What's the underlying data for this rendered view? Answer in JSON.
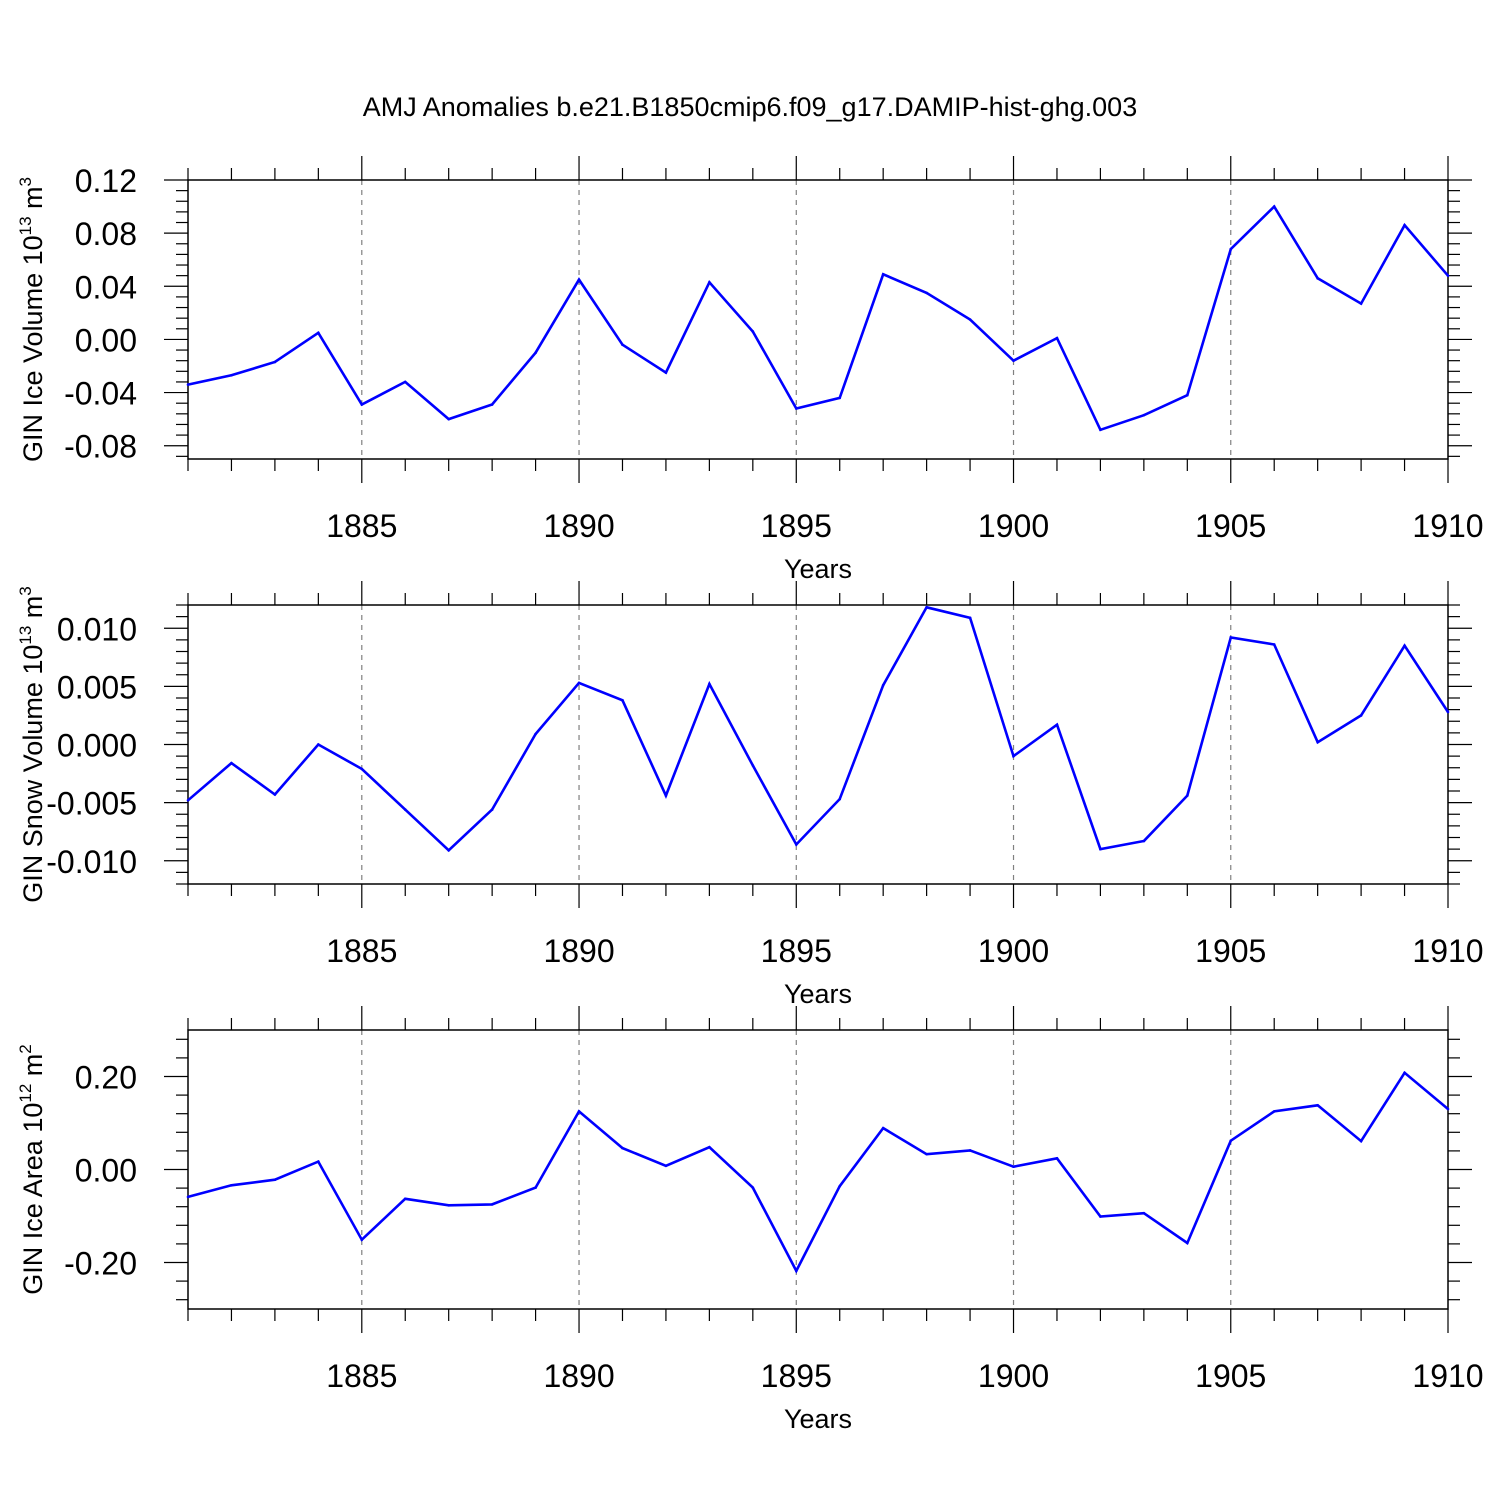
{
  "title": "AMJ Anomalies b.e21.B1850cmip6.f09_g17.DAMIP-hist-ghg.003",
  "colors": {
    "line": "#0000ff",
    "frame": "#000000",
    "grid": "#808080"
  },
  "chart_data": [
    {
      "type": "line",
      "ylabel": "GIN Ice Volume 10",
      "ylabel_exp": "13",
      "ylabel_unit": " m",
      "ylabel_unit_exp": "3",
      "xlabel": "Years",
      "xlim": [
        1881,
        1910
      ],
      "ylim": [
        -0.09,
        0.12
      ],
      "yticks": [
        -0.08,
        -0.04,
        0.0,
        0.04,
        0.08,
        0.12
      ],
      "ytick_labels": [
        "-0.08",
        "-0.04",
        "0.00",
        "0.04",
        "0.08",
        "0.12"
      ],
      "xticks": [
        1885,
        1890,
        1895,
        1900,
        1905,
        1910
      ],
      "xtick_labels": [
        "1885",
        "1890",
        "1895",
        "1900",
        "1905",
        "1910"
      ],
      "grid": "vertical dashed at major x ticks",
      "x": [
        1881,
        1882,
        1883,
        1884,
        1885,
        1886,
        1887,
        1888,
        1889,
        1890,
        1891,
        1892,
        1893,
        1894,
        1895,
        1896,
        1897,
        1898,
        1899,
        1900,
        1901,
        1902,
        1903,
        1904,
        1905,
        1906,
        1907,
        1908,
        1909,
        1910
      ],
      "values": [
        -0.034,
        -0.027,
        -0.017,
        0.005,
        -0.049,
        -0.032,
        -0.06,
        -0.049,
        -0.01,
        0.045,
        -0.004,
        -0.025,
        0.043,
        0.006,
        -0.052,
        -0.044,
        0.049,
        0.035,
        0.015,
        -0.016,
        0.001,
        -0.068,
        -0.057,
        -0.042,
        0.068,
        0.1,
        0.046,
        0.027,
        0.086,
        0.048
      ]
    },
    {
      "type": "line",
      "ylabel": "GIN Snow Volume 10",
      "ylabel_exp": "13",
      "ylabel_unit": " m",
      "ylabel_unit_exp": "3",
      "xlabel": "Years",
      "xlim": [
        1881,
        1910
      ],
      "ylim": [
        -0.012,
        0.012
      ],
      "yticks": [
        -0.01,
        -0.005,
        0.0,
        0.005,
        0.01
      ],
      "ytick_labels": [
        "-0.010",
        "-0.005",
        "0.000",
        "0.005",
        "0.010"
      ],
      "xticks": [
        1885,
        1890,
        1895,
        1900,
        1905,
        1910
      ],
      "xtick_labels": [
        "1885",
        "1890",
        "1895",
        "1900",
        "1905",
        "1910"
      ],
      "grid": "vertical dashed at major x ticks",
      "x": [
        1881,
        1882,
        1883,
        1884,
        1885,
        1886,
        1887,
        1888,
        1889,
        1890,
        1891,
        1892,
        1893,
        1894,
        1895,
        1896,
        1897,
        1898,
        1899,
        1900,
        1901,
        1902,
        1903,
        1904,
        1905,
        1906,
        1907,
        1908,
        1909,
        1910
      ],
      "values": [
        -0.0048,
        -0.0016,
        -0.0043,
        0.0,
        -0.0021,
        -0.0056,
        -0.0091,
        -0.0056,
        0.0009,
        0.0053,
        0.0038,
        -0.0044,
        0.0052,
        -0.0018,
        -0.0086,
        -0.0047,
        0.0051,
        0.0118,
        0.0109,
        -0.001,
        0.0017,
        -0.009,
        -0.0083,
        -0.0044,
        0.0092,
        0.0086,
        0.0002,
        0.0025,
        0.0085,
        0.0028
      ]
    },
    {
      "type": "line",
      "ylabel": "GIN Ice Area 10",
      "ylabel_exp": "12",
      "ylabel_unit": " m",
      "ylabel_unit_exp": "2",
      "xlabel": "Years",
      "xlim": [
        1881,
        1910
      ],
      "ylim": [
        -0.3,
        0.3
      ],
      "yticks": [
        -0.2,
        0.0,
        0.2
      ],
      "ytick_labels": [
        "-0.20",
        "0.00",
        "0.20"
      ],
      "xticks": [
        1885,
        1890,
        1895,
        1900,
        1905,
        1910
      ],
      "xtick_labels": [
        "1885",
        "1890",
        "1895",
        "1900",
        "1905",
        "1910"
      ],
      "grid": "vertical dashed at major x ticks",
      "x": [
        1881,
        1882,
        1883,
        1884,
        1885,
        1886,
        1887,
        1888,
        1889,
        1890,
        1891,
        1892,
        1893,
        1894,
        1895,
        1896,
        1897,
        1898,
        1899,
        1900,
        1901,
        1902,
        1903,
        1904,
        1905,
        1906,
        1907,
        1908,
        1909,
        1910
      ],
      "values": [
        -0.059,
        -0.034,
        -0.022,
        0.017,
        -0.151,
        -0.063,
        -0.077,
        -0.075,
        -0.039,
        0.125,
        0.046,
        0.008,
        0.048,
        -0.039,
        -0.218,
        -0.036,
        0.089,
        0.033,
        0.041,
        0.006,
        0.024,
        -0.101,
        -0.094,
        -0.158,
        0.062,
        0.125,
        0.138,
        0.061,
        0.208,
        0.13
      ]
    }
  ]
}
